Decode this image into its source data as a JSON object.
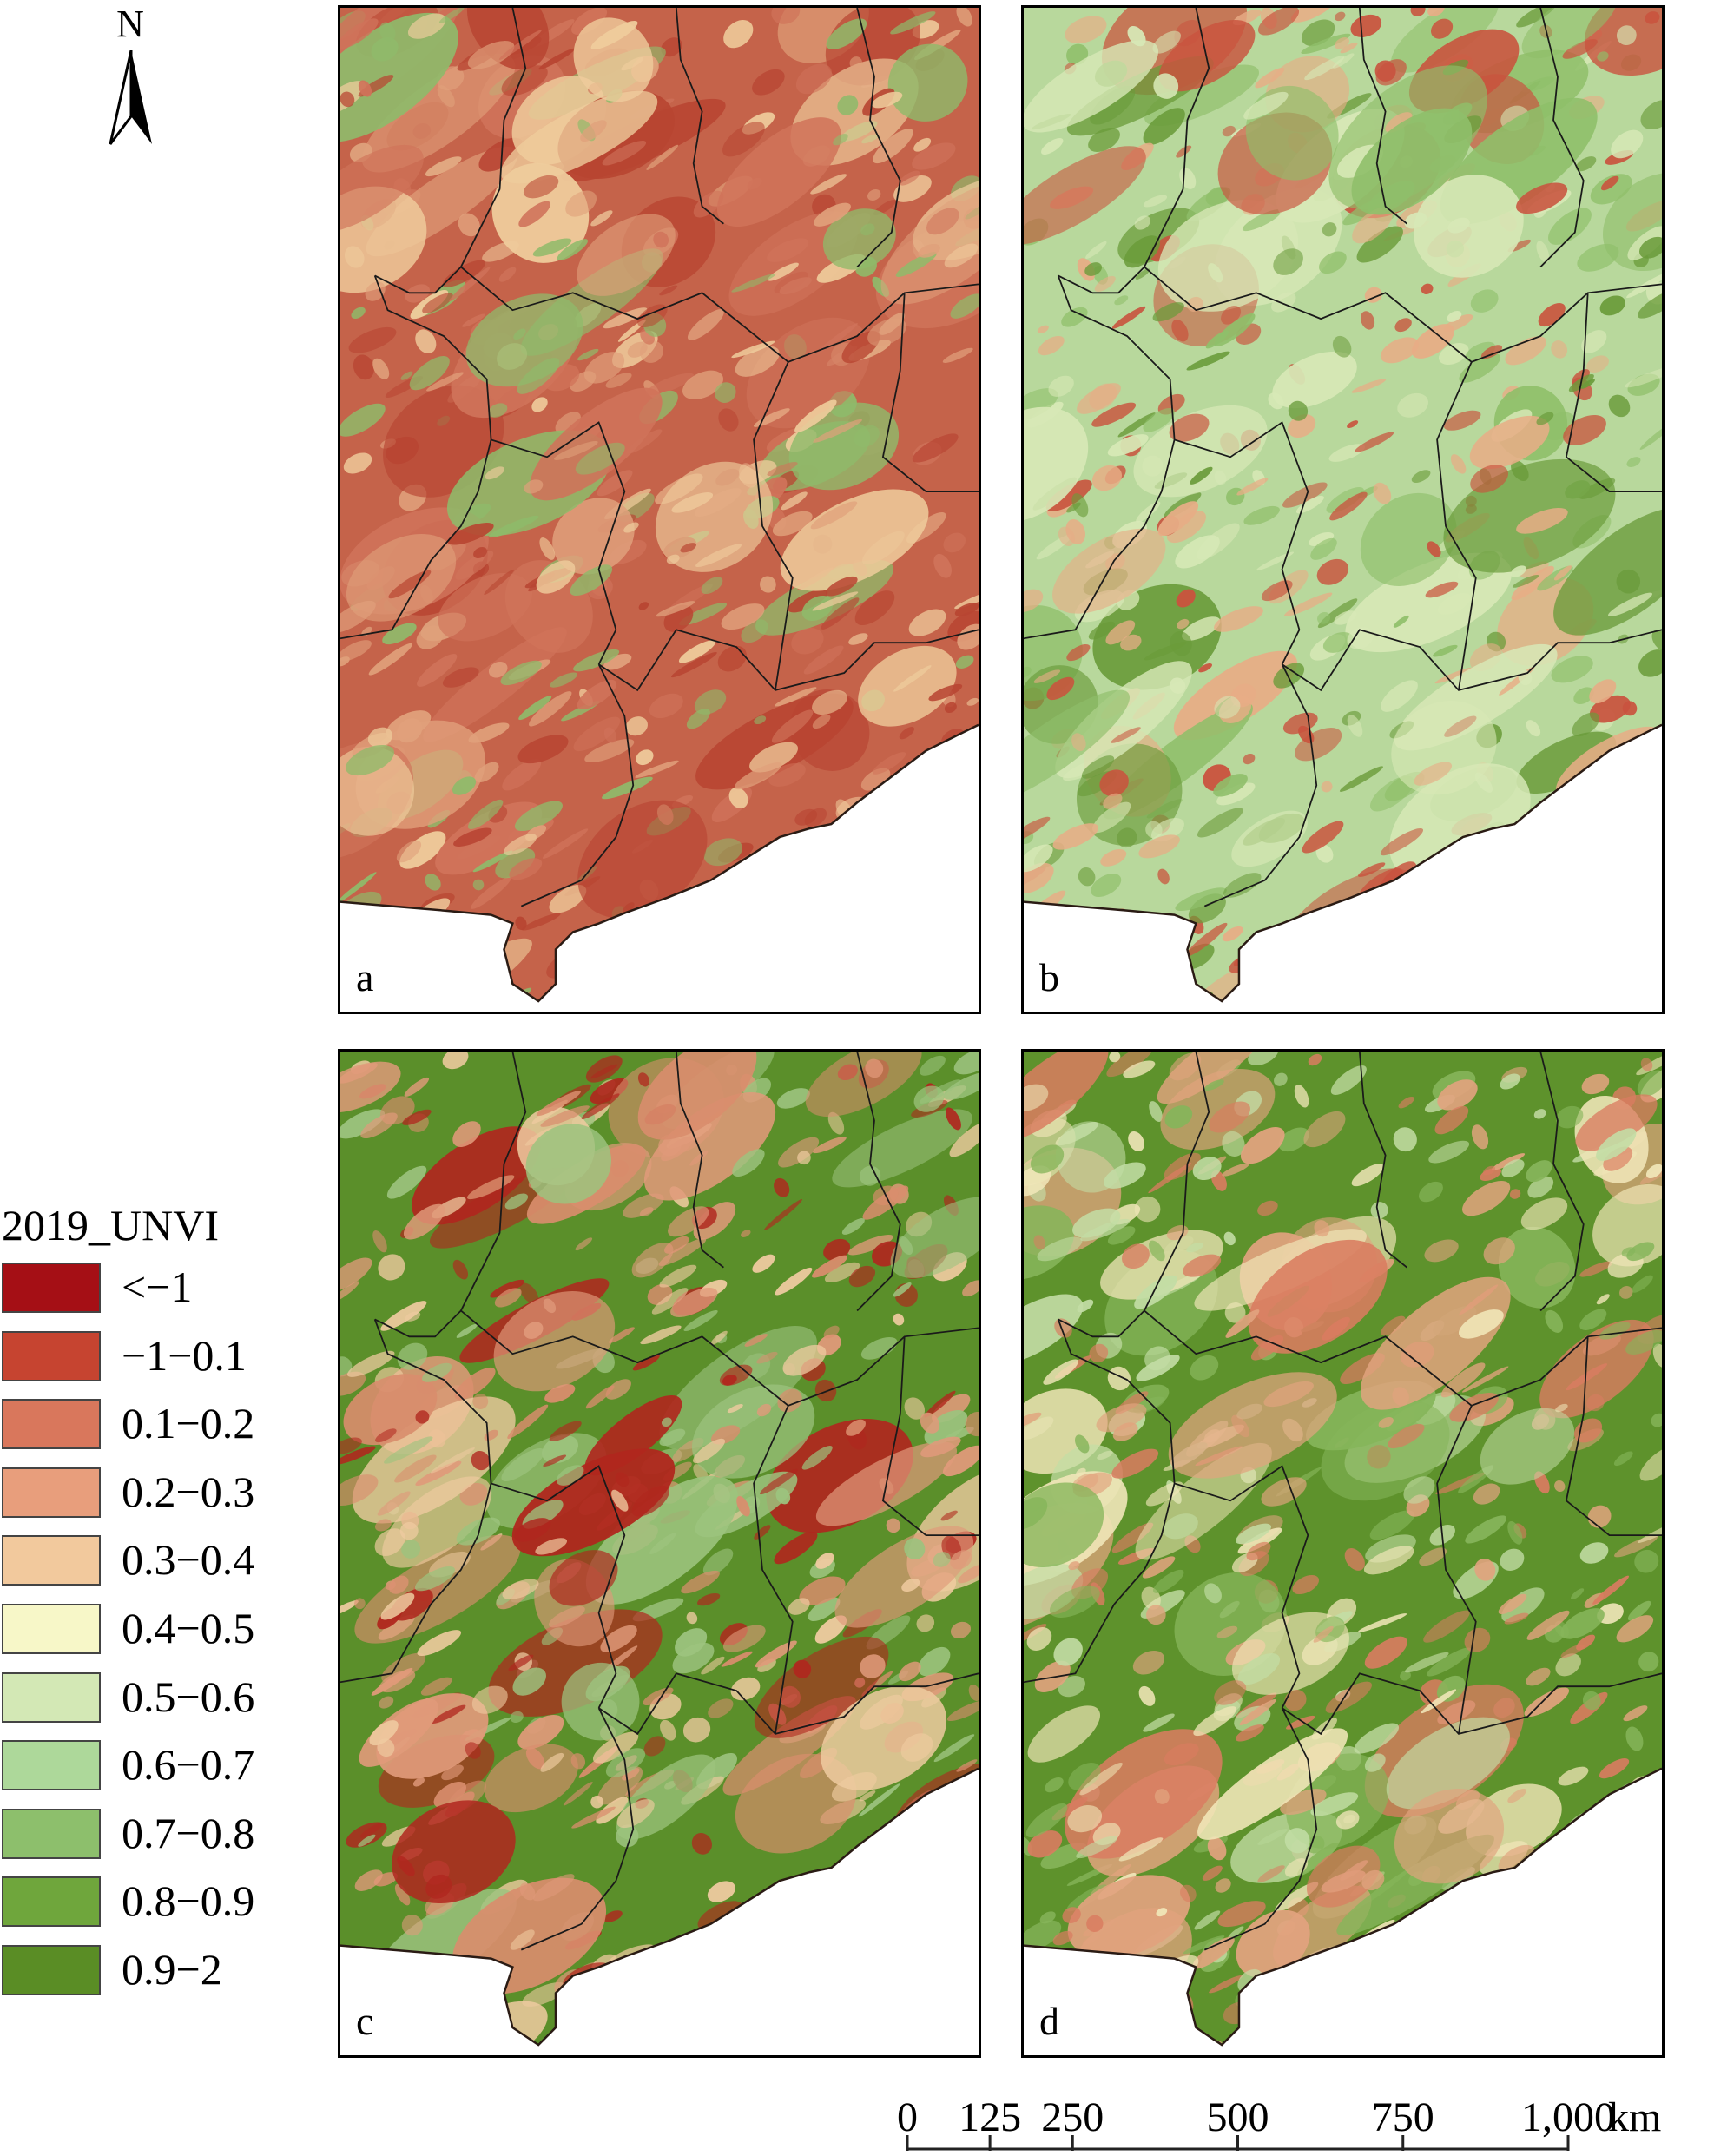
{
  "north_arrow": {
    "label": "N"
  },
  "panels": [
    {
      "label": "a",
      "palette": [
        "#c5634a",
        "#d0735a",
        "#b84532",
        "#e0a07b",
        "#efcc9c",
        "#8fba6a"
      ]
    },
    {
      "label": "b",
      "palette": [
        "#b8d89c",
        "#d7e8b6",
        "#8fbf6a",
        "#e7ad86",
        "#6a9b3a",
        "#c9533e"
      ]
    },
    {
      "label": "c",
      "palette": [
        "#5b8f2a",
        "#e09a7a",
        "#d98d6d",
        "#9cc37e",
        "#efcba0",
        "#b0271e"
      ]
    },
    {
      "label": "d",
      "palette": [
        "#5e922c",
        "#86b55a",
        "#c3dda5",
        "#e1a37e",
        "#d97c60",
        "#f0e6b8"
      ]
    }
  ],
  "legend": {
    "title": "2019_UNVI",
    "items": [
      {
        "label": "<−1",
        "color": "#a50f15"
      },
      {
        "label": "−1−0.1",
        "color": "#c64430"
      },
      {
        "label": "0.1−0.2",
        "color": "#d9775c"
      },
      {
        "label": "0.2−0.3",
        "color": "#e89e7c"
      },
      {
        "label": "0.3−0.4",
        "color": "#f2c99d"
      },
      {
        "label": "0.4−0.5",
        "color": "#f7f7c8"
      },
      {
        "label": "0.5−0.6",
        "color": "#d3e8b5"
      },
      {
        "label": "0.6−0.7",
        "color": "#add89a"
      },
      {
        "label": "0.7−0.8",
        "color": "#8dbf6c"
      },
      {
        "label": "0.8−0.9",
        "color": "#6fa63c"
      },
      {
        "label": "0.9−2",
        "color": "#5a8d25"
      }
    ]
  },
  "scalebar": {
    "ticks": [
      {
        "label": "0",
        "value": 0
      },
      {
        "label": "125",
        "value": 125
      },
      {
        "label": "250",
        "value": 250
      },
      {
        "label": "500",
        "value": 500
      },
      {
        "label": "750",
        "value": 750
      },
      {
        "label": "1,000",
        "value": 1000
      }
    ],
    "unit": "km"
  }
}
